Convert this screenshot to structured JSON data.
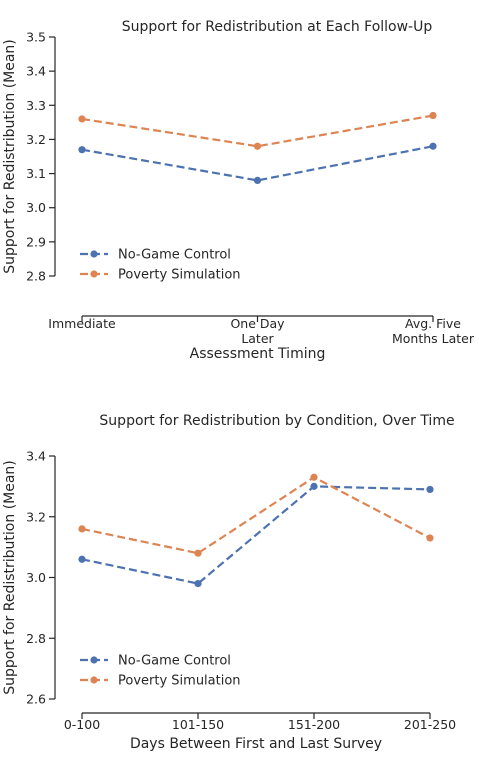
{
  "colors": {
    "no_game": "#4c72b0",
    "poverty": "#dd8452",
    "axis": "#262626"
  },
  "chart_data": [
    {
      "type": "line",
      "title": "Support for Redistribution at Each Follow-Up",
      "xlabel": "Assessment Timing",
      "ylabel": "Support for Redistribution (Mean)",
      "categories": [
        [
          "Immediate"
        ],
        [
          "One Day",
          "Later"
        ],
        [
          "Avg. Five",
          "Months Later"
        ]
      ],
      "yticks": [
        "2.8",
        "2.9",
        "3.0",
        "3.1",
        "3.2",
        "3.3",
        "3.4",
        "3.5"
      ],
      "ylim": [
        2.8,
        3.5
      ],
      "legend": "lower-left",
      "series": [
        {
          "name": "No-Game Control",
          "values": [
            3.17,
            3.08,
            3.18
          ],
          "color": "#4c72b0"
        },
        {
          "name": "Poverty Simulation",
          "values": [
            3.26,
            3.18,
            3.27
          ],
          "color": "#dd8452"
        }
      ]
    },
    {
      "type": "line",
      "title": "Support for Redistribution by Condition, Over Time",
      "xlabel": "Days Between First and Last Survey",
      "ylabel": "Support for Redistribution (Mean)",
      "categories": [
        [
          "0-100"
        ],
        [
          "101-150"
        ],
        [
          "151-200"
        ],
        [
          "201-250"
        ]
      ],
      "yticks": [
        "2.6",
        "2.8",
        "3.0",
        "3.2",
        "3.4"
      ],
      "ylim": [
        2.6,
        3.4
      ],
      "legend": "lower-left",
      "series": [
        {
          "name": "No-Game Control",
          "values": [
            3.06,
            2.98,
            3.3,
            3.29
          ],
          "color": "#4c72b0"
        },
        {
          "name": "Poverty Simulation",
          "values": [
            3.16,
            3.08,
            3.33,
            3.13
          ],
          "color": "#dd8452"
        }
      ]
    }
  ]
}
